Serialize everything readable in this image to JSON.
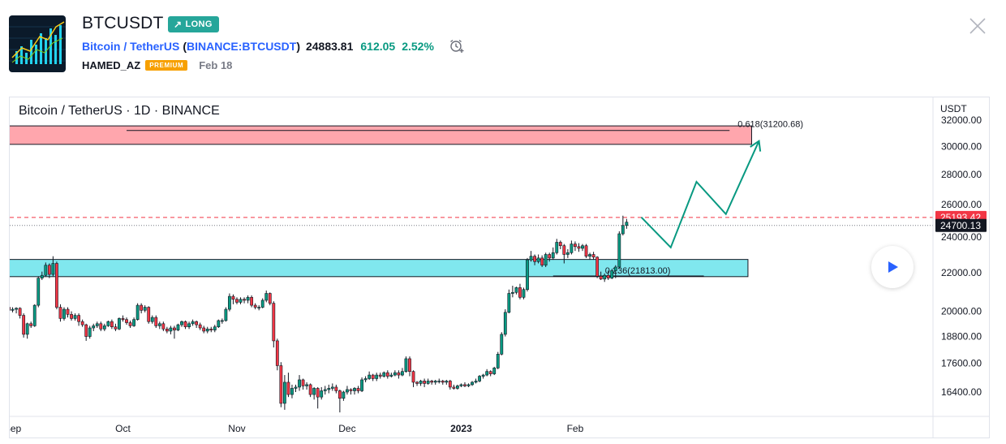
{
  "header": {
    "symbol": "BTCUSDT",
    "badge": "LONG",
    "name": "Bitcoin / TetherUS",
    "exchange_open": "(",
    "exchange": "BINANCE:BTCUSDT",
    "exchange_close": ")",
    "price": "24883.81",
    "change": "612.05",
    "change_pct": "2.52%",
    "author": "HAMED_AZ",
    "author_badge": "PREMIUM",
    "date": "Feb 18"
  },
  "colors": {
    "up": "#089981",
    "down": "#f23645",
    "badge": "#26a69a",
    "accent_blue": "#2962ff",
    "resistance_zone": "#ffa6ad",
    "support_zone": "#80e7ee",
    "projection": "#089981",
    "premium": "#f7a000"
  },
  "chart_data": {
    "type": "candlestick",
    "legend": "Bitcoin / TetherUS · 1D · BINANCE",
    "currency": "USDT",
    "scale": "log",
    "y_range": [
      15400,
      33000
    ],
    "y_ticks": [
      "32000.00",
      "30000.00",
      "28000.00",
      "26000.00",
      "24000.00",
      "22000.00",
      "20000.00",
      "18800.00",
      "17600.00",
      "16400.00"
    ],
    "y_tick_values": [
      32000,
      30000,
      28000,
      26000,
      24000,
      22000,
      20000,
      18800,
      17600,
      16400
    ],
    "x_labels": [
      {
        "label": "Sep",
        "date": "2022-09-01",
        "bold": false
      },
      {
        "label": "Oct",
        "date": "2022-10-01",
        "bold": false
      },
      {
        "label": "Nov",
        "date": "2022-11-01",
        "bold": false
      },
      {
        "label": "Dec",
        "date": "2022-12-01",
        "bold": false
      },
      {
        "label": "2023",
        "date": "2023-01-01",
        "bold": true
      },
      {
        "label": "Feb",
        "date": "2023-02-01",
        "bold": false
      }
    ],
    "x_domain": [
      "2022-08-31",
      "2023-03-25"
    ],
    "price_labels": {
      "current": "24700.13",
      "current_value": 24700,
      "dashed": "25193.42",
      "dashed_value": 25193
    },
    "zones": [
      {
        "kind": "resistance",
        "low": 30150,
        "high": 31550,
        "start": "2022-08-31",
        "end": "2023-03-21",
        "line_value": 31200,
        "line_start": "2022-10-02",
        "line_end": "2023-03-15",
        "label": "0.618(31200.68)"
      },
      {
        "kind": "support",
        "low": 21780,
        "high": 22720,
        "start": "2022-08-31",
        "end": "2023-03-20",
        "line_value": 21813,
        "line_start": "2023-01-26",
        "line_end": "2023-03-08",
        "label": "0.236(21813.00)"
      }
    ],
    "projection": [
      {
        "date": "2023-02-19",
        "value": 25200
      },
      {
        "date": "2023-02-27",
        "value": 23400
      },
      {
        "date": "2023-03-06",
        "value": 27500
      },
      {
        "date": "2023-03-14",
        "value": 25400
      },
      {
        "date": "2023-03-23",
        "value": 30400
      }
    ],
    "candles": [
      [
        20250,
        20200,
        20350,
        20100
      ],
      [
        20200,
        20050,
        20300,
        19950
      ],
      [
        20050,
        20100,
        20200,
        19950
      ],
      [
        20100,
        20150,
        20200,
        19900
      ],
      [
        20150,
        19800,
        20200,
        19650
      ],
      [
        19800,
        18900,
        19900,
        18750
      ],
      [
        18900,
        19400,
        19450,
        18700
      ],
      [
        19400,
        19300,
        19500,
        19200
      ],
      [
        19300,
        20300,
        20350,
        19250
      ],
      [
        20300,
        21700,
        21800,
        20200
      ],
      [
        21700,
        21850,
        22050,
        21600
      ],
      [
        21850,
        22400,
        22550,
        21800
      ],
      [
        22400,
        21900,
        22500,
        21700
      ],
      [
        21900,
        22500,
        22900,
        21800
      ],
      [
        22500,
        20200,
        22600,
        20100
      ],
      [
        20200,
        19650,
        20350,
        19500
      ],
      [
        19650,
        20100,
        20200,
        19550
      ],
      [
        20100,
        19850,
        20200,
        19700
      ],
      [
        19850,
        19650,
        20000,
        19550
      ],
      [
        19650,
        19800,
        19900,
        19550
      ],
      [
        19800,
        19500,
        19900,
        19300
      ],
      [
        19500,
        19350,
        19600,
        19250
      ],
      [
        19350,
        18800,
        19400,
        18600
      ],
      [
        18800,
        19200,
        19300,
        18700
      ],
      [
        19200,
        19300,
        19400,
        19050
      ],
      [
        19300,
        19400,
        19500,
        19200
      ],
      [
        19400,
        19150,
        19500,
        19050
      ],
      [
        19150,
        19300,
        19400,
        19050
      ],
      [
        19300,
        19500,
        19550,
        19250
      ],
      [
        19500,
        19250,
        19600,
        19150
      ],
      [
        19250,
        19150,
        19400,
        19050
      ],
      [
        19150,
        19650,
        19700,
        19100
      ],
      [
        19650,
        19600,
        19800,
        19500
      ],
      [
        19600,
        19450,
        19700,
        19350
      ],
      [
        19450,
        19300,
        19550,
        19200
      ],
      [
        19300,
        19600,
        19700,
        19250
      ],
      [
        19600,
        20300,
        20400,
        19550
      ],
      [
        20300,
        20050,
        20400,
        19900
      ],
      [
        20050,
        20200,
        20300,
        19950
      ],
      [
        20200,
        19500,
        20250,
        19400
      ],
      [
        19500,
        19700,
        19800,
        19400
      ],
      [
        19700,
        19300,
        19800,
        19200
      ],
      [
        19300,
        19400,
        19500,
        19150
      ],
      [
        19400,
        19150,
        19500,
        19050
      ],
      [
        19150,
        19050,
        19250,
        18950
      ],
      [
        19050,
        19200,
        19300,
        18900
      ],
      [
        19200,
        19100,
        19300,
        18700
      ],
      [
        19100,
        19350,
        19400,
        19050
      ],
      [
        19350,
        19500,
        19550,
        19250
      ],
      [
        19500,
        19250,
        19550,
        19150
      ],
      [
        19250,
        19400,
        19500,
        19150
      ],
      [
        19400,
        19500,
        19600,
        19300
      ],
      [
        19500,
        19350,
        19550,
        19200
      ],
      [
        19350,
        19200,
        19450,
        19100
      ],
      [
        19200,
        19050,
        19300,
        18950
      ],
      [
        19050,
        19150,
        19250,
        18950
      ],
      [
        19150,
        19100,
        19250,
        19000
      ],
      [
        19100,
        19250,
        19350,
        19000
      ],
      [
        19250,
        19550,
        19600,
        19200
      ],
      [
        19550,
        19550,
        19650,
        19400
      ],
      [
        19550,
        20100,
        20200,
        19500
      ],
      [
        20100,
        20750,
        20900,
        20000
      ],
      [
        20750,
        20600,
        20850,
        20350
      ],
      [
        20600,
        20450,
        20700,
        20350
      ],
      [
        20450,
        20600,
        20700,
        20350
      ],
      [
        20600,
        20550,
        20700,
        20400
      ],
      [
        20550,
        20700,
        20800,
        20400
      ],
      [
        20700,
        20300,
        20800,
        20200
      ],
      [
        20300,
        20200,
        20400,
        20100
      ],
      [
        20200,
        20200,
        20300,
        20050
      ],
      [
        20200,
        20550,
        20650,
        20150
      ],
      [
        20550,
        20900,
        21050,
        20450
      ],
      [
        20900,
        20400,
        20950,
        20300
      ],
      [
        20400,
        18600,
        20500,
        18300
      ],
      [
        18600,
        17500,
        18700,
        17300
      ],
      [
        17500,
        15950,
        17650,
        15800
      ],
      [
        15950,
        16800,
        17100,
        15700
      ],
      [
        16800,
        16300,
        17200,
        16200
      ],
      [
        16300,
        16550,
        16700,
        16150
      ],
      [
        16550,
        16600,
        16700,
        16400
      ],
      [
        16600,
        16900,
        17100,
        16450
      ],
      [
        16900,
        16650,
        16950,
        16500
      ],
      [
        16650,
        16700,
        16800,
        16500
      ],
      [
        16700,
        16300,
        16750,
        16200
      ],
      [
        16300,
        16550,
        16600,
        16100
      ],
      [
        16550,
        16200,
        16600,
        15750
      ],
      [
        16200,
        16450,
        16600,
        16100
      ],
      [
        16450,
        16500,
        16650,
        16300
      ],
      [
        16500,
        16550,
        16700,
        16350
      ],
      [
        16550,
        16600,
        16750,
        16450
      ],
      [
        16600,
        16450,
        16700,
        16350
      ],
      [
        16450,
        16150,
        16500,
        15600
      ],
      [
        16150,
        16400,
        16450,
        16050
      ],
      [
        16400,
        16500,
        16650,
        16300
      ],
      [
        16500,
        16450,
        16550,
        16300
      ],
      [
        16450,
        16550,
        16600,
        16300
      ],
      [
        16550,
        16450,
        16650,
        16350
      ],
      [
        16450,
        16900,
        17000,
        16400
      ],
      [
        16900,
        16950,
        17050,
        16800
      ],
      [
        16950,
        17100,
        17250,
        16900
      ],
      [
        17100,
        16950,
        17150,
        16850
      ],
      [
        16950,
        17100,
        17200,
        16850
      ],
      [
        17100,
        17050,
        17200,
        16950
      ],
      [
        17050,
        17200,
        17250,
        17000
      ],
      [
        17200,
        17050,
        17300,
        16950
      ],
      [
        17050,
        17100,
        17200,
        17000
      ],
      [
        17100,
        17200,
        17300,
        17050
      ],
      [
        17200,
        17100,
        17300,
        16950
      ],
      [
        17100,
        17250,
        17400,
        17050
      ],
      [
        17250,
        17800,
        17900,
        17200
      ],
      [
        17800,
        17250,
        17900,
        17050
      ],
      [
        17250,
        16800,
        17300,
        16600
      ],
      [
        16800,
        16750,
        16850,
        16650
      ],
      [
        16750,
        16850,
        16900,
        16650
      ],
      [
        16850,
        16750,
        16950,
        16600
      ],
      [
        16750,
        16850,
        16950,
        16700
      ],
      [
        16850,
        16800,
        16900,
        16700
      ],
      [
        16800,
        16850,
        16900,
        16700
      ],
      [
        16850,
        16850,
        16950,
        16750
      ],
      [
        16850,
        16800,
        16900,
        16700
      ],
      [
        16800,
        16850,
        16900,
        16700
      ],
      [
        16850,
        16600,
        16900,
        16500
      ],
      [
        16600,
        16550,
        16700,
        16500
      ],
      [
        16550,
        16650,
        16700,
        16500
      ],
      [
        16650,
        16700,
        16750,
        16600
      ],
      [
        16700,
        16650,
        16800,
        16600
      ],
      [
        16650,
        16700,
        16750,
        16600
      ],
      [
        16700,
        16800,
        16850,
        16650
      ],
      [
        16800,
        16850,
        16950,
        16750
      ],
      [
        16850,
        17050,
        17100,
        16800
      ],
      [
        17050,
        17100,
        17150,
        16950
      ],
      [
        17100,
        17250,
        17350,
        17050
      ],
      [
        17250,
        17150,
        17300,
        17050
      ],
      [
        17150,
        17400,
        17450,
        17100
      ],
      [
        17400,
        18000,
        18100,
        17350
      ],
      [
        18000,
        18900,
        19000,
        17950
      ],
      [
        18900,
        19950,
        20100,
        18800
      ],
      [
        19950,
        20900,
        21100,
        19900
      ],
      [
        20900,
        20950,
        21300,
        20700
      ],
      [
        20950,
        21200,
        21250,
        20850
      ],
      [
        21200,
        20700,
        21400,
        20600
      ],
      [
        20700,
        21100,
        21200,
        20600
      ],
      [
        21100,
        22700,
        22800,
        21000
      ],
      [
        22700,
        22900,
        23200,
        22600
      ],
      [
        22900,
        22600,
        23000,
        22400
      ],
      [
        22600,
        22800,
        23000,
        22500
      ],
      [
        22800,
        22400,
        22950,
        22300
      ],
      [
        22400,
        23000,
        23100,
        22300
      ],
      [
        23000,
        22800,
        23100,
        22600
      ],
      [
        22800,
        23100,
        23400,
        22700
      ],
      [
        23100,
        23700,
        23900,
        23000
      ],
      [
        23700,
        23500,
        23800,
        23300
      ],
      [
        23500,
        23000,
        23600,
        22500
      ],
      [
        23000,
        23100,
        23300,
        22800
      ],
      [
        23100,
        23600,
        23800,
        23000
      ],
      [
        23600,
        23450,
        23750,
        23200
      ],
      [
        23450,
        23350,
        23650,
        23150
      ],
      [
        23350,
        23500,
        23600,
        23200
      ],
      [
        23500,
        22900,
        23600,
        22800
      ],
      [
        22900,
        23000,
        23100,
        22700
      ],
      [
        23000,
        22850,
        23150,
        22700
      ],
      [
        22850,
        21800,
        22900,
        21700
      ],
      [
        21800,
        21650,
        22050,
        21600
      ],
      [
        21650,
        21850,
        21950,
        21500
      ],
      [
        21850,
        21700,
        22100,
        21600
      ],
      [
        21700,
        22100,
        22200,
        21650
      ],
      [
        22100,
        22300,
        22400,
        21700
      ],
      [
        22300,
        24200,
        24350,
        22200
      ],
      [
        24200,
        24700,
        25300,
        24100
      ],
      [
        24700,
        24900,
        25100,
        24500
      ]
    ],
    "candles_start_date": "2022-08-30"
  }
}
